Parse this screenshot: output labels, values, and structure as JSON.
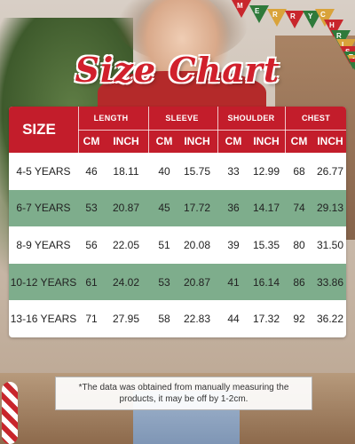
{
  "title": "Size Chart",
  "bunting_text": "MERRY CHRISTMAS",
  "table": {
    "size_header": "SIZE",
    "groups": [
      "LENGTH",
      "SLEEVE",
      "SHOULDER",
      "CHEST"
    ],
    "sub_headers": [
      "CM",
      "INCH",
      "CM",
      "INCH",
      "CM",
      "INCH",
      "CM",
      "INCH"
    ],
    "rows": [
      {
        "size": "4-5 YEARS",
        "values": [
          "46",
          "18.11",
          "40",
          "15.75",
          "33",
          "12.99",
          "68",
          "26.77"
        ]
      },
      {
        "size": "6-7 YEARS",
        "values": [
          "53",
          "20.87",
          "45",
          "17.72",
          "36",
          "14.17",
          "74",
          "29.13"
        ]
      },
      {
        "size": "8-9 YEARS",
        "values": [
          "56",
          "22.05",
          "51",
          "20.08",
          "39",
          "15.35",
          "80",
          "31.50"
        ]
      },
      {
        "size": "10-12 YEARS",
        "values": [
          "61",
          "24.02",
          "53",
          "20.87",
          "41",
          "16.14",
          "86",
          "33.86"
        ]
      },
      {
        "size": "13-16 YEARS",
        "values": [
          "71",
          "27.95",
          "58",
          "22.83",
          "44",
          "17.32",
          "92",
          "36.22"
        ]
      }
    ]
  },
  "note": "*The data was obtained from manually measuring the products, it may be off by 1-2cm.",
  "colors": {
    "header_red": "#c31d2b",
    "alt_row_green": "#7ead8c",
    "title_red": "#d1202c"
  }
}
